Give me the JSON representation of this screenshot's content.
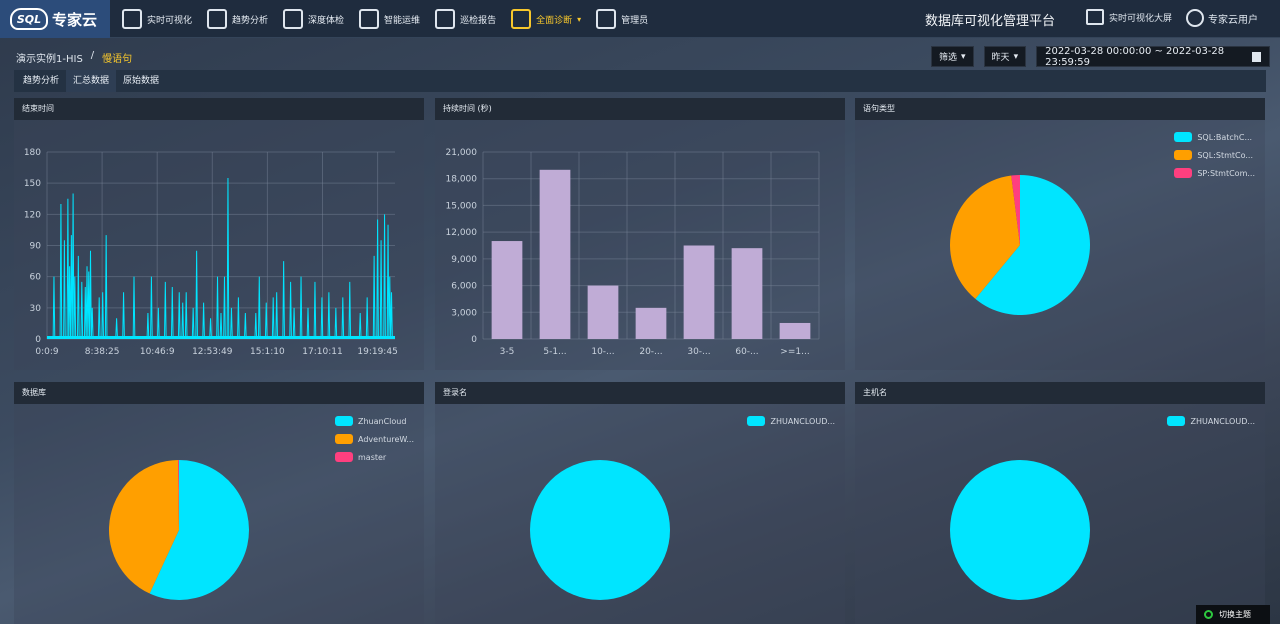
{
  "brand": {
    "logo_text": "SQL",
    "name": "专家云"
  },
  "nav": [
    {
      "label": "实时可视化",
      "icon": "monitor-icon",
      "active": false
    },
    {
      "label": "趋势分析",
      "icon": "bar-chart-icon",
      "active": false
    },
    {
      "label": "深度体检",
      "icon": "stethoscope-icon",
      "active": false
    },
    {
      "label": "智能运维",
      "icon": "gear-robot-icon",
      "active": false
    },
    {
      "label": "巡检报告",
      "icon": "clipboard-icon",
      "active": false
    },
    {
      "label": "全面诊断",
      "icon": "diagnosis-icon",
      "active": true
    },
    {
      "label": "管理员",
      "icon": "admin-user-icon",
      "active": false
    }
  ],
  "header": {
    "platform_title": "数据库可视化管理平台",
    "bigscreen_label": "实时可视化大屏",
    "user_label": "专家云用户"
  },
  "breadcrumb": {
    "instance": "演示实例1-HIS",
    "sep": "/",
    "current": "慢语句"
  },
  "filters": {
    "filter_label": "筛选",
    "period_label": "昨天",
    "date_range": "2022-03-28 00:00:00 ~ 2022-03-28 23:59:59"
  },
  "tabs": [
    "趋势分析",
    "汇总数据",
    "原始数据"
  ],
  "active_tab": 1,
  "panels": {
    "end_time": "结束时间",
    "duration": "持续时间 (秒)",
    "statement_type": "语句类型",
    "database": "数据库",
    "login": "登录名",
    "host": "主机名"
  },
  "theme_toggle": "切换主题",
  "colors": {
    "cyan": "#00e5ff",
    "orange": "#ff9f00",
    "pink": "#ff3f7f",
    "bar": "#c0acd6",
    "gold": "#f7c72c"
  },
  "chart_data": [
    {
      "type": "line",
      "title": "结束时间",
      "x_ticks": [
        "0:0:9",
        "8:38:25",
        "10:46:9",
        "12:53:49",
        "15:1:10",
        "17:10:11",
        "19:19:45"
      ],
      "y_ticks": [
        "0",
        "30",
        "60",
        "90",
        "120",
        "150",
        "180"
      ],
      "ylim": [
        0,
        180
      ],
      "spikes": [
        [
          0.02,
          60
        ],
        [
          0.04,
          130
        ],
        [
          0.05,
          95
        ],
        [
          0.06,
          135
        ],
        [
          0.065,
          70
        ],
        [
          0.07,
          100
        ],
        [
          0.075,
          140
        ],
        [
          0.08,
          60
        ],
        [
          0.09,
          80
        ],
        [
          0.1,
          55
        ],
        [
          0.11,
          50
        ],
        [
          0.115,
          70
        ],
        [
          0.12,
          65
        ],
        [
          0.125,
          85
        ],
        [
          0.13,
          30
        ],
        [
          0.15,
          40
        ],
        [
          0.16,
          45
        ],
        [
          0.17,
          100
        ],
        [
          0.2,
          20
        ],
        [
          0.22,
          45
        ],
        [
          0.25,
          60
        ],
        [
          0.29,
          25
        ],
        [
          0.3,
          60
        ],
        [
          0.32,
          30
        ],
        [
          0.34,
          55
        ],
        [
          0.36,
          50
        ],
        [
          0.38,
          45
        ],
        [
          0.39,
          35
        ],
        [
          0.4,
          45
        ],
        [
          0.42,
          30
        ],
        [
          0.43,
          85
        ],
        [
          0.45,
          35
        ],
        [
          0.47,
          20
        ],
        [
          0.49,
          60
        ],
        [
          0.5,
          25
        ],
        [
          0.51,
          60
        ],
        [
          0.52,
          155
        ],
        [
          0.53,
          30
        ],
        [
          0.55,
          40
        ],
        [
          0.57,
          25
        ],
        [
          0.6,
          25
        ],
        [
          0.61,
          60
        ],
        [
          0.63,
          35
        ],
        [
          0.65,
          40
        ],
        [
          0.66,
          45
        ],
        [
          0.68,
          75
        ],
        [
          0.7,
          55
        ],
        [
          0.71,
          30
        ],
        [
          0.73,
          60
        ],
        [
          0.75,
          30
        ],
        [
          0.77,
          55
        ],
        [
          0.79,
          40
        ],
        [
          0.81,
          45
        ],
        [
          0.83,
          30
        ],
        [
          0.85,
          40
        ],
        [
          0.87,
          55
        ],
        [
          0.9,
          25
        ],
        [
          0.92,
          40
        ],
        [
          0.94,
          80
        ],
        [
          0.95,
          115
        ],
        [
          0.96,
          95
        ],
        [
          0.97,
          120
        ],
        [
          0.98,
          110
        ],
        [
          0.985,
          60
        ],
        [
          0.99,
          45
        ]
      ]
    },
    {
      "type": "bar",
      "title": "持续时间 (秒)",
      "categories": [
        "3-5",
        "5-1...",
        "10-...",
        "20-...",
        "30-...",
        "60-...",
        ">=1..."
      ],
      "values": [
        11000,
        19000,
        6000,
        3500,
        10500,
        10200,
        1800
      ],
      "y_ticks": [
        "0",
        "3,000",
        "6,000",
        "9,000",
        "12,000",
        "15,000",
        "18,000",
        "21,000"
      ],
      "ylim": [
        0,
        21000
      ]
    },
    {
      "type": "pie",
      "title": "语句类型",
      "series": [
        {
          "name": "SQL:BatchC...",
          "value": 61,
          "color": "#00e5ff"
        },
        {
          "name": "SQL:StmtCo...",
          "value": 37,
          "color": "#ff9f00"
        },
        {
          "name": "SP:StmtCom...",
          "value": 2,
          "color": "#ff3f7f"
        }
      ]
    },
    {
      "type": "pie",
      "title": "数据库",
      "series": [
        {
          "name": "ZhuanCloud",
          "value": 57,
          "color": "#00e5ff"
        },
        {
          "name": "AdventureW...",
          "value": 43,
          "color": "#ff9f00"
        },
        {
          "name": "master",
          "value": 0.2,
          "color": "#ff3f7f"
        }
      ]
    },
    {
      "type": "pie",
      "title": "登录名",
      "series": [
        {
          "name": "ZHUANCLOUD...",
          "value": 100,
          "color": "#00e5ff"
        }
      ]
    },
    {
      "type": "pie",
      "title": "主机名",
      "series": [
        {
          "name": "ZHUANCLOUD...",
          "value": 100,
          "color": "#00e5ff"
        }
      ]
    }
  ]
}
